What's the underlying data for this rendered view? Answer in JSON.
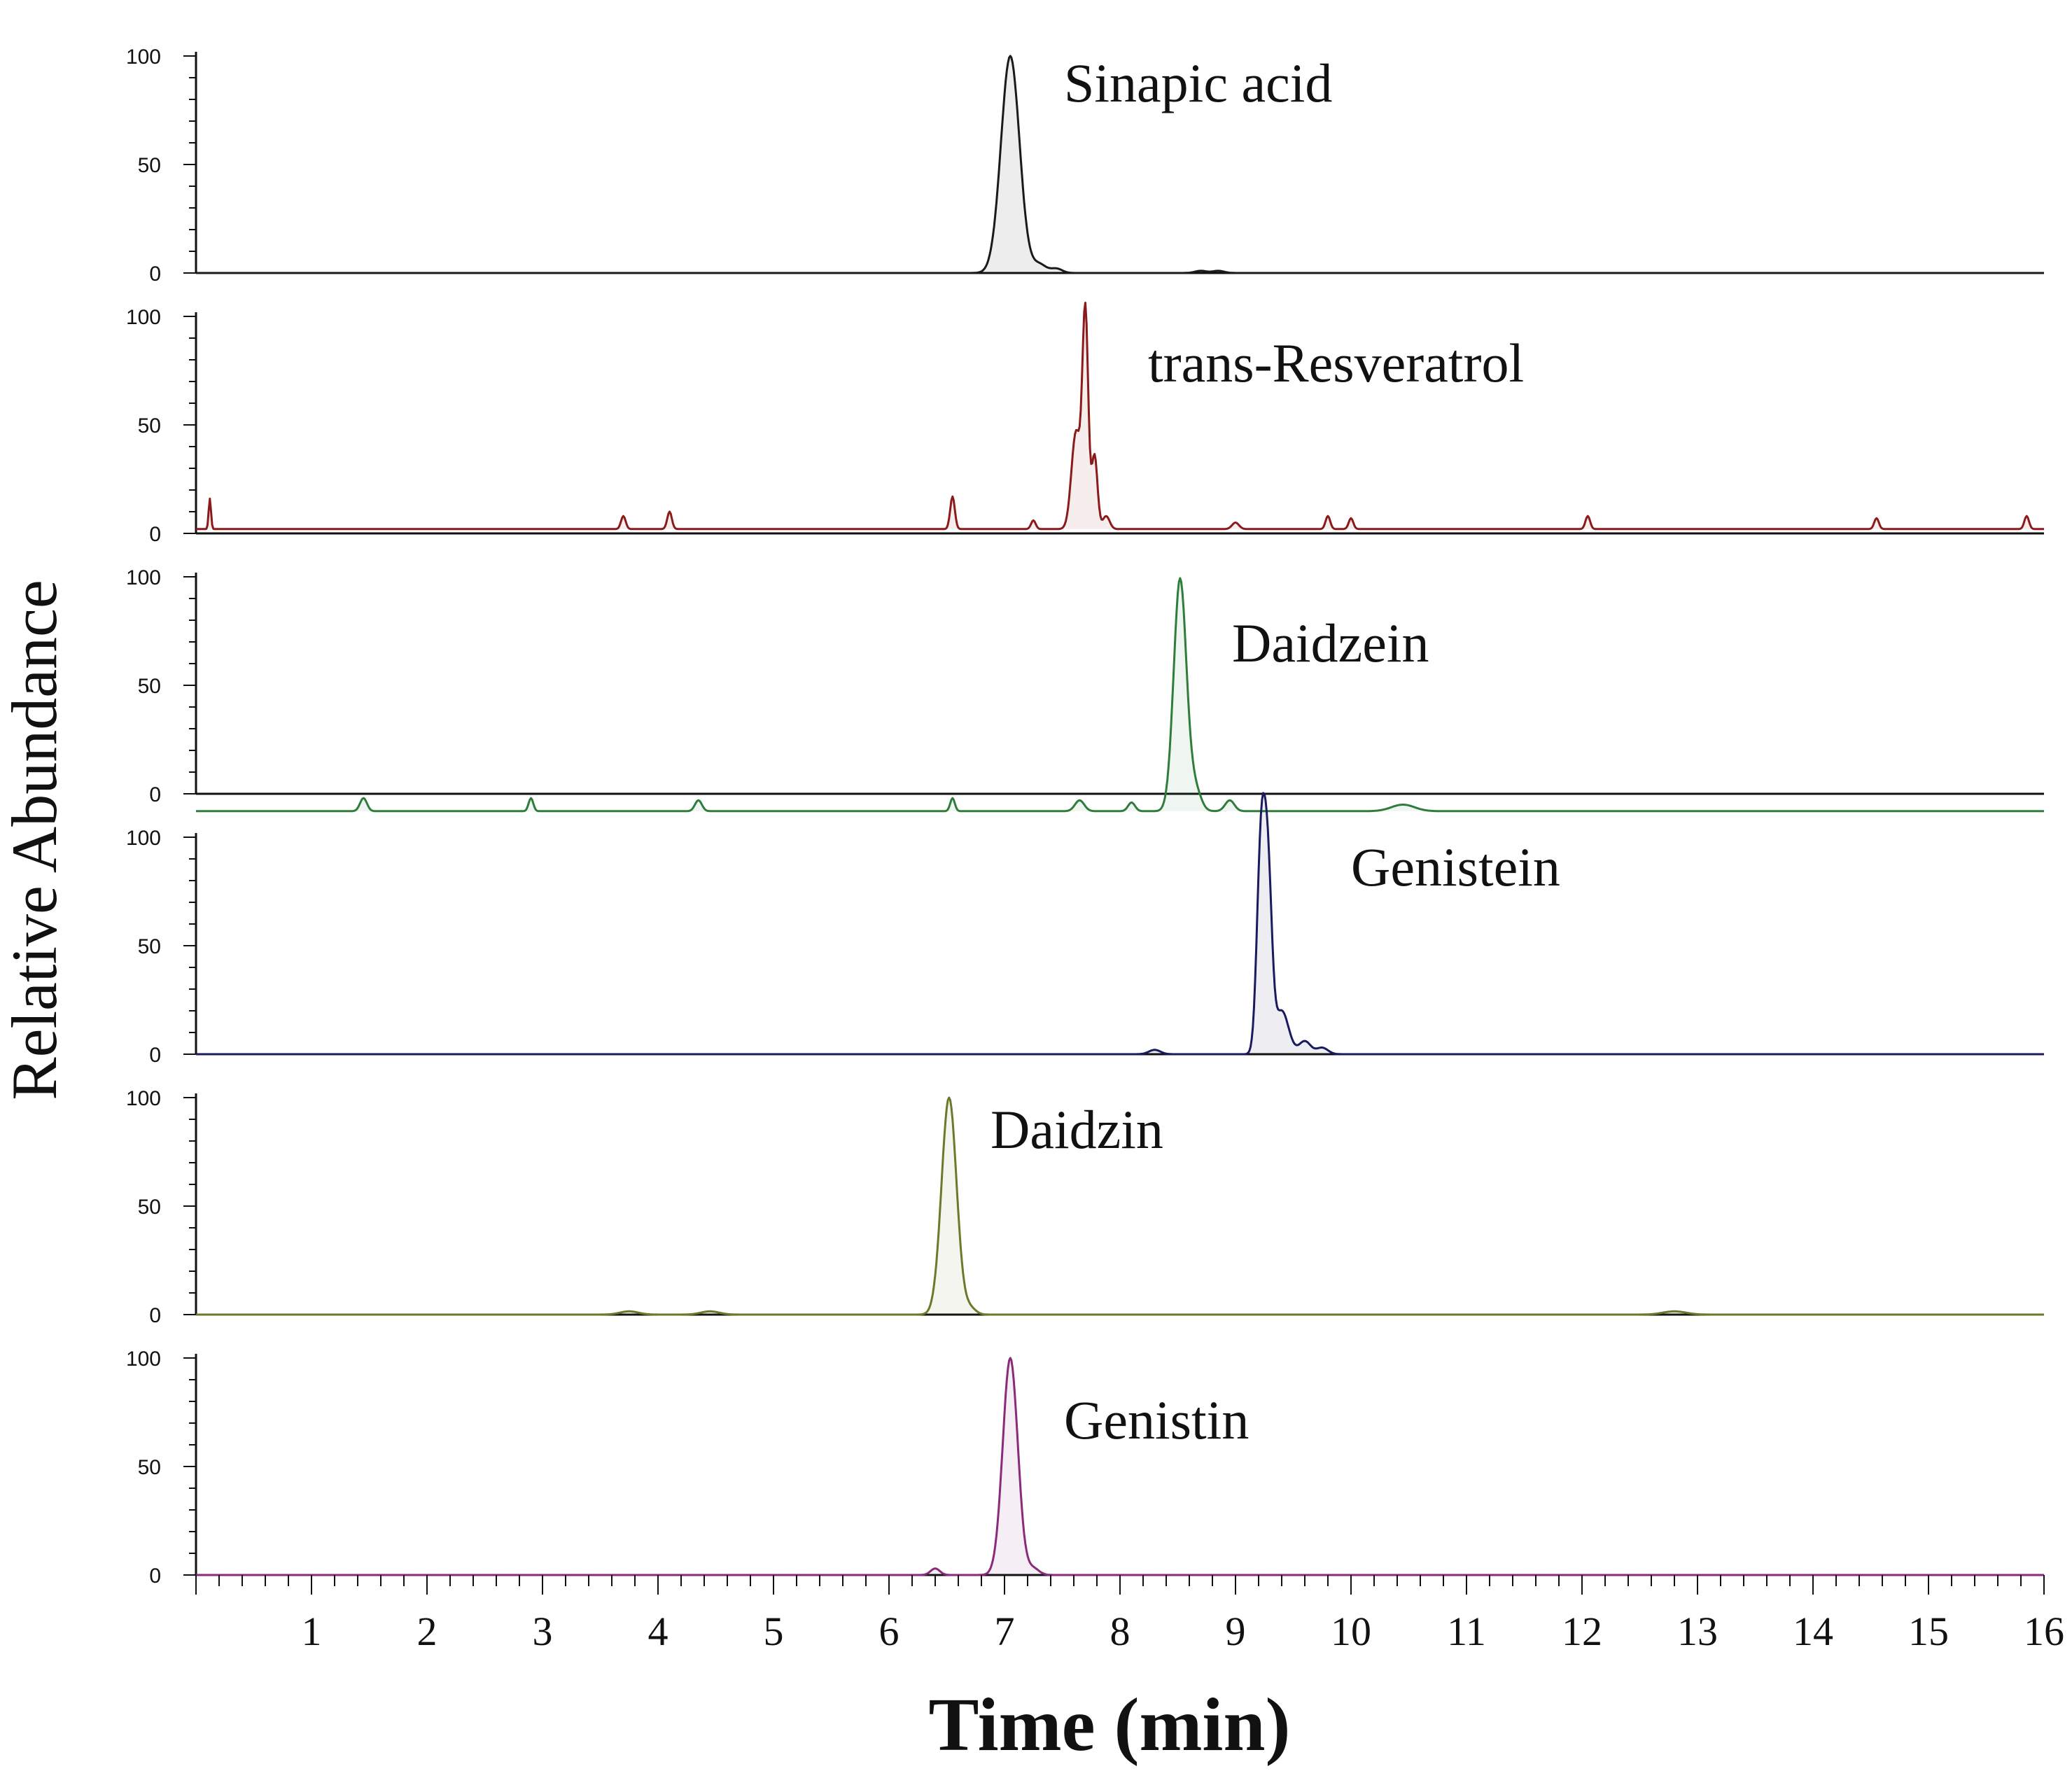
{
  "chart_data": {
    "type": "line",
    "title": "",
    "xlabel": "Time (min)",
    "ylabel": "Relative Abundance",
    "xlim": [
      0,
      16
    ],
    "ylim": [
      0,
      100
    ],
    "x_ticks": [
      1,
      2,
      3,
      4,
      5,
      6,
      7,
      8,
      9,
      10,
      11,
      12,
      13,
      14,
      15,
      16
    ],
    "x_tick_labels": [
      "1",
      "2",
      "3",
      "4",
      "5",
      "6",
      "7",
      "8",
      "9",
      "10",
      "11",
      "12",
      "13",
      "14",
      "15",
      "16"
    ],
    "y_ticks": [
      0,
      50,
      100
    ],
    "y_tick_labels": [
      "0",
      "50",
      "100"
    ],
    "grid": false,
    "series": [
      {
        "name": "Sinapic acid",
        "color": "#1a1a1a",
        "baseline": 0,
        "peaks": [
          {
            "rt": 7.05,
            "height": 100,
            "width": 0.08
          },
          {
            "rt": 7.3,
            "height": 4,
            "width": 0.06
          },
          {
            "rt": 7.45,
            "height": 2,
            "width": 0.05
          },
          {
            "rt": 8.7,
            "height": 1,
            "width": 0.05
          },
          {
            "rt": 8.85,
            "height": 1,
            "width": 0.05
          }
        ]
      },
      {
        "name": "trans-Resveratrol",
        "color": "#8b1a1a",
        "baseline": 2,
        "peaks": [
          {
            "rt": 0.12,
            "height": 14,
            "width": 0.01
          },
          {
            "rt": 3.7,
            "height": 6,
            "width": 0.02
          },
          {
            "rt": 4.1,
            "height": 8,
            "width": 0.02
          },
          {
            "rt": 6.55,
            "height": 15,
            "width": 0.02
          },
          {
            "rt": 7.25,
            "height": 4,
            "width": 0.02
          },
          {
            "rt": 7.62,
            "height": 45,
            "width": 0.04
          },
          {
            "rt": 7.7,
            "height": 98,
            "width": 0.025
          },
          {
            "rt": 7.78,
            "height": 34,
            "width": 0.025
          },
          {
            "rt": 7.88,
            "height": 6,
            "width": 0.03
          },
          {
            "rt": 9.0,
            "height": 3,
            "width": 0.03
          },
          {
            "rt": 9.8,
            "height": 6,
            "width": 0.02
          },
          {
            "rt": 10.0,
            "height": 5,
            "width": 0.02
          },
          {
            "rt": 12.05,
            "height": 6,
            "width": 0.02
          },
          {
            "rt": 14.55,
            "height": 5,
            "width": 0.02
          },
          {
            "rt": 15.85,
            "height": 6,
            "width": 0.02
          }
        ]
      },
      {
        "name": "Daidzein",
        "color": "#2e7d3a",
        "baseline": -8,
        "peaks": [
          {
            "rt": 1.45,
            "height": 6,
            "width": 0.03
          },
          {
            "rt": 2.9,
            "height": 6,
            "width": 0.02
          },
          {
            "rt": 4.35,
            "height": 5,
            "width": 0.03
          },
          {
            "rt": 6.55,
            "height": 6,
            "width": 0.02
          },
          {
            "rt": 7.65,
            "height": 5,
            "width": 0.04
          },
          {
            "rt": 8.1,
            "height": 4,
            "width": 0.03
          },
          {
            "rt": 8.52,
            "height": 107,
            "width": 0.055
          },
          {
            "rt": 8.65,
            "height": 10,
            "width": 0.05
          },
          {
            "rt": 8.95,
            "height": 5,
            "width": 0.04
          },
          {
            "rt": 10.45,
            "height": 3,
            "width": 0.1
          }
        ]
      },
      {
        "name": "Genistein",
        "color": "#1a1a5e",
        "baseline": 0,
        "peaks": [
          {
            "rt": 9.22,
            "height": 92,
            "width": 0.035
          },
          {
            "rt": 9.28,
            "height": 80,
            "width": 0.035
          },
          {
            "rt": 9.4,
            "height": 20,
            "width": 0.06
          },
          {
            "rt": 9.6,
            "height": 6,
            "width": 0.05
          },
          {
            "rt": 9.75,
            "height": 3,
            "width": 0.05
          },
          {
            "rt": 8.3,
            "height": 2,
            "width": 0.05
          }
        ]
      },
      {
        "name": "Daidzin",
        "color": "#6b7a2a",
        "baseline": 0,
        "peaks": [
          {
            "rt": 6.52,
            "height": 100,
            "width": 0.065
          },
          {
            "rt": 6.7,
            "height": 3,
            "width": 0.05
          },
          {
            "rt": 3.75,
            "height": 1.5,
            "width": 0.08
          },
          {
            "rt": 4.45,
            "height": 1.5,
            "width": 0.08
          },
          {
            "rt": 12.8,
            "height": 1.5,
            "width": 0.1
          }
        ]
      },
      {
        "name": "Genistin",
        "color": "#8a2a7a",
        "baseline": 0,
        "peaks": [
          {
            "rt": 7.05,
            "height": 100,
            "width": 0.065
          },
          {
            "rt": 7.25,
            "height": 3,
            "width": 0.05
          },
          {
            "rt": 6.4,
            "height": 3,
            "width": 0.04
          }
        ]
      }
    ]
  }
}
